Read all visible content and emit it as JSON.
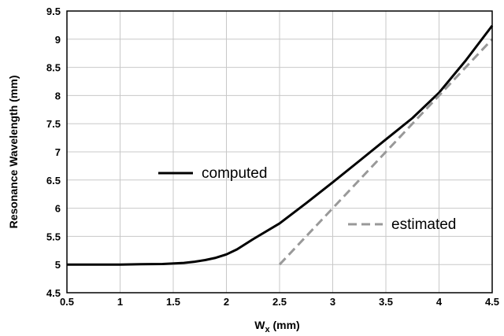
{
  "chart_data": {
    "type": "line",
    "title": "",
    "xlabel": {
      "main": "W",
      "sub": "x",
      "unit": " (mm)"
    },
    "ylabel": "Resonance Wavelength (mm)",
    "xlim": [
      0.5,
      4.5
    ],
    "ylim": [
      4.5,
      9.5
    ],
    "grid": true,
    "x_ticks": [
      "0.5",
      "1",
      "1.5",
      "2",
      "2.5",
      "3",
      "3.5",
      "4",
      "4.5"
    ],
    "y_ticks": [
      "4.5",
      "5",
      "5.5",
      "6",
      "6.5",
      "7",
      "7.5",
      "8",
      "8.5",
      "9",
      "9.5"
    ],
    "series": [
      {
        "name": "computed",
        "color": "#000000",
        "style": "solid",
        "x": [
          0.5,
          1.0,
          1.2,
          1.4,
          1.6,
          1.7,
          1.8,
          1.9,
          2.0,
          2.1,
          2.25,
          2.5,
          2.75,
          3.0,
          3.25,
          3.5,
          3.75,
          4.0,
          4.25,
          4.5
        ],
        "y": [
          5.0,
          5.0,
          5.005,
          5.01,
          5.03,
          5.05,
          5.08,
          5.12,
          5.18,
          5.27,
          5.45,
          5.73,
          6.09,
          6.46,
          6.84,
          7.22,
          7.6,
          8.05,
          8.62,
          9.24
        ]
      },
      {
        "name": "estimated",
        "color": "#999999",
        "style": "dashed",
        "x": [
          2.5,
          4.5
        ],
        "y": [
          5.0,
          9.0
        ]
      }
    ]
  },
  "legend": {
    "computed": "computed",
    "estimated": "estimated"
  }
}
